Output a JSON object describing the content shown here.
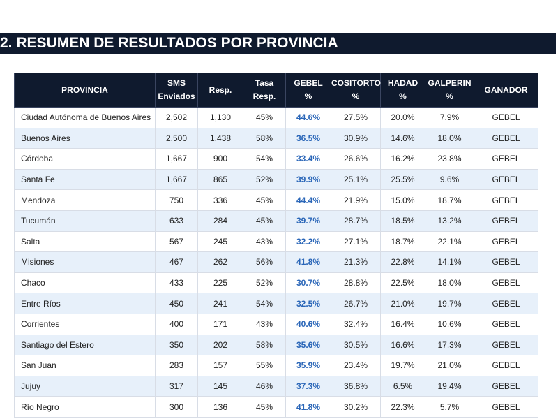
{
  "header": {
    "title": "2. RESUMEN DE RESULTADOS POR PROVINCIA"
  },
  "table": {
    "columns": [
      "PROVINCIA",
      "SMS\nEnviados",
      "Resp.",
      "Tasa\nResp.",
      "GEBEL\n%",
      "COSITORTO\n%",
      "HADAD\n%",
      "GALPERIN\n%",
      "GANADOR"
    ],
    "rows": [
      [
        "Ciudad Autónoma de Buenos Aires",
        "2,502",
        "1,130",
        "45%",
        "44.6%",
        "27.5%",
        "20.0%",
        "7.9%",
        "GEBEL"
      ],
      [
        "Buenos Aires",
        "2,500",
        "1,438",
        "58%",
        "36.5%",
        "30.9%",
        "14.6%",
        "18.0%",
        "GEBEL"
      ],
      [
        "Córdoba",
        "1,667",
        "900",
        "54%",
        "33.4%",
        "26.6%",
        "16.2%",
        "23.8%",
        "GEBEL"
      ],
      [
        "Santa Fe",
        "1,667",
        "865",
        "52%",
        "39.9%",
        "25.1%",
        "25.5%",
        "9.6%",
        "GEBEL"
      ],
      [
        "Mendoza",
        "750",
        "336",
        "45%",
        "44.4%",
        "21.9%",
        "15.0%",
        "18.7%",
        "GEBEL"
      ],
      [
        "Tucumán",
        "633",
        "284",
        "45%",
        "39.7%",
        "28.7%",
        "18.5%",
        "13.2%",
        "GEBEL"
      ],
      [
        "Salta",
        "567",
        "245",
        "43%",
        "32.2%",
        "27.1%",
        "18.7%",
        "22.1%",
        "GEBEL"
      ],
      [
        "Misiones",
        "467",
        "262",
        "56%",
        "41.8%",
        "21.3%",
        "22.8%",
        "14.1%",
        "GEBEL"
      ],
      [
        "Chaco",
        "433",
        "225",
        "52%",
        "30.7%",
        "28.8%",
        "22.5%",
        "18.0%",
        "GEBEL"
      ],
      [
        "Entre Ríos",
        "450",
        "241",
        "54%",
        "32.5%",
        "26.7%",
        "21.0%",
        "19.7%",
        "GEBEL"
      ],
      [
        "Corrientes",
        "400",
        "171",
        "43%",
        "40.6%",
        "32.4%",
        "16.4%",
        "10.6%",
        "GEBEL"
      ],
      [
        "Santiago del Estero",
        "350",
        "202",
        "58%",
        "35.6%",
        "30.5%",
        "16.6%",
        "17.3%",
        "GEBEL"
      ],
      [
        "San Juan",
        "283",
        "157",
        "55%",
        "35.9%",
        "23.4%",
        "19.7%",
        "21.0%",
        "GEBEL"
      ],
      [
        "Jujuy",
        "317",
        "145",
        "46%",
        "37.3%",
        "36.8%",
        "6.5%",
        "19.4%",
        "GEBEL"
      ],
      [
        "Río Negro",
        "300",
        "136",
        "45%",
        "41.8%",
        "30.2%",
        "22.3%",
        "5.7%",
        "GEBEL"
      ]
    ]
  }
}
